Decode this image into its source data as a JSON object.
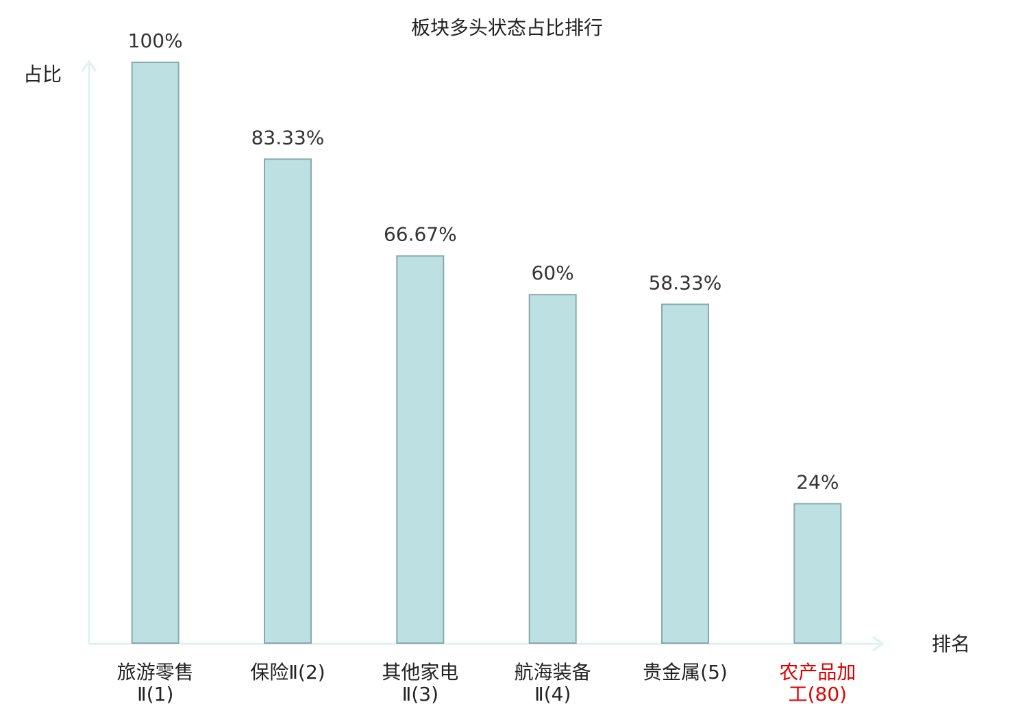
{
  "chart_data": {
    "type": "bar",
    "title": "板块多头状态占比排行",
    "y_label": "占比",
    "x_label": "排名",
    "categories": [
      [
        "旅游零售",
        "Ⅱ(1)"
      ],
      [
        "保险Ⅱ(2)"
      ],
      [
        "其他家电",
        "Ⅱ(3)"
      ],
      [
        "航海装备",
        "Ⅱ(4)"
      ],
      [
        "贵金属(5)"
      ],
      [
        "农产品加",
        "工(80)"
      ]
    ],
    "values": [
      100,
      83.33,
      66.67,
      60,
      58.33,
      24
    ],
    "value_labels": [
      "100%",
      "83.33%",
      "66.67%",
      "60%",
      "58.33%",
      "24%"
    ],
    "color": "#bde0e3",
    "edge_color": "#8aa9ad",
    "highlight_category": 5,
    "highlight_color": "#e00000",
    "ylim": [
      0,
      100
    ],
    "grid": false
  }
}
